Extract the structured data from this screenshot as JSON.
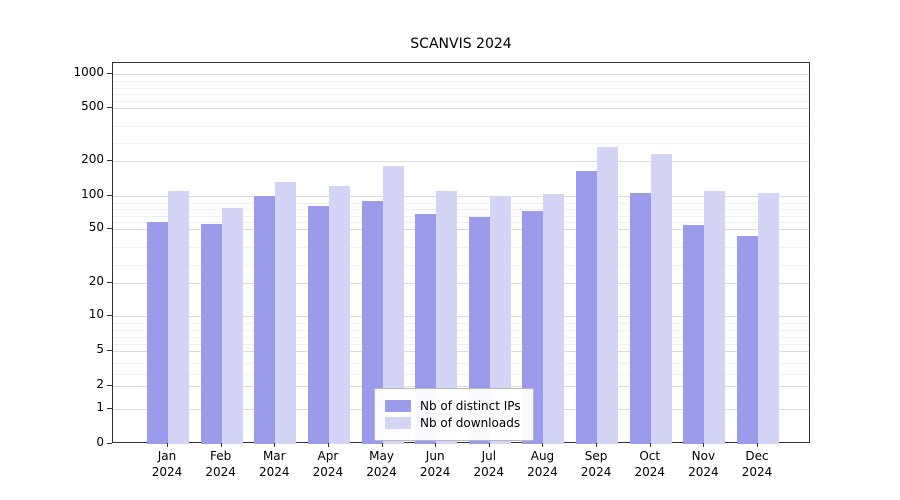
{
  "chart_data": {
    "type": "bar",
    "title": "SCANVIS 2024",
    "scale": "symlog",
    "grid": true,
    "legend_position": "lower center",
    "categories": [
      "Jan",
      "Feb",
      "Mar",
      "Apr",
      "May",
      "Jun",
      "Jul",
      "Aug",
      "Sep",
      "Oct",
      "Nov",
      "Dec"
    ],
    "year": "2024",
    "yticks": [
      0,
      1,
      2,
      5,
      10,
      20,
      50,
      100,
      200,
      500,
      1000
    ],
    "ylim": [
      0,
      1400
    ],
    "series": [
      {
        "name": "Nb of distinct IPs",
        "color": "#9b9bec",
        "values": [
          60,
          57,
          100,
          85,
          93,
          73,
          68,
          78,
          172,
          110,
          56,
          46
        ]
      },
      {
        "name": "Nb of downloads",
        "color": "#d4d4f7",
        "values": [
          115,
          82,
          140,
          128,
          185,
          115,
          100,
          106,
          280,
          240,
          115,
          108
        ]
      }
    ]
  },
  "colors": {
    "grid_major": "#dcdcdc",
    "grid_minor": "#f0f0f0",
    "axis": "#333333",
    "background": "#ffffff"
  }
}
